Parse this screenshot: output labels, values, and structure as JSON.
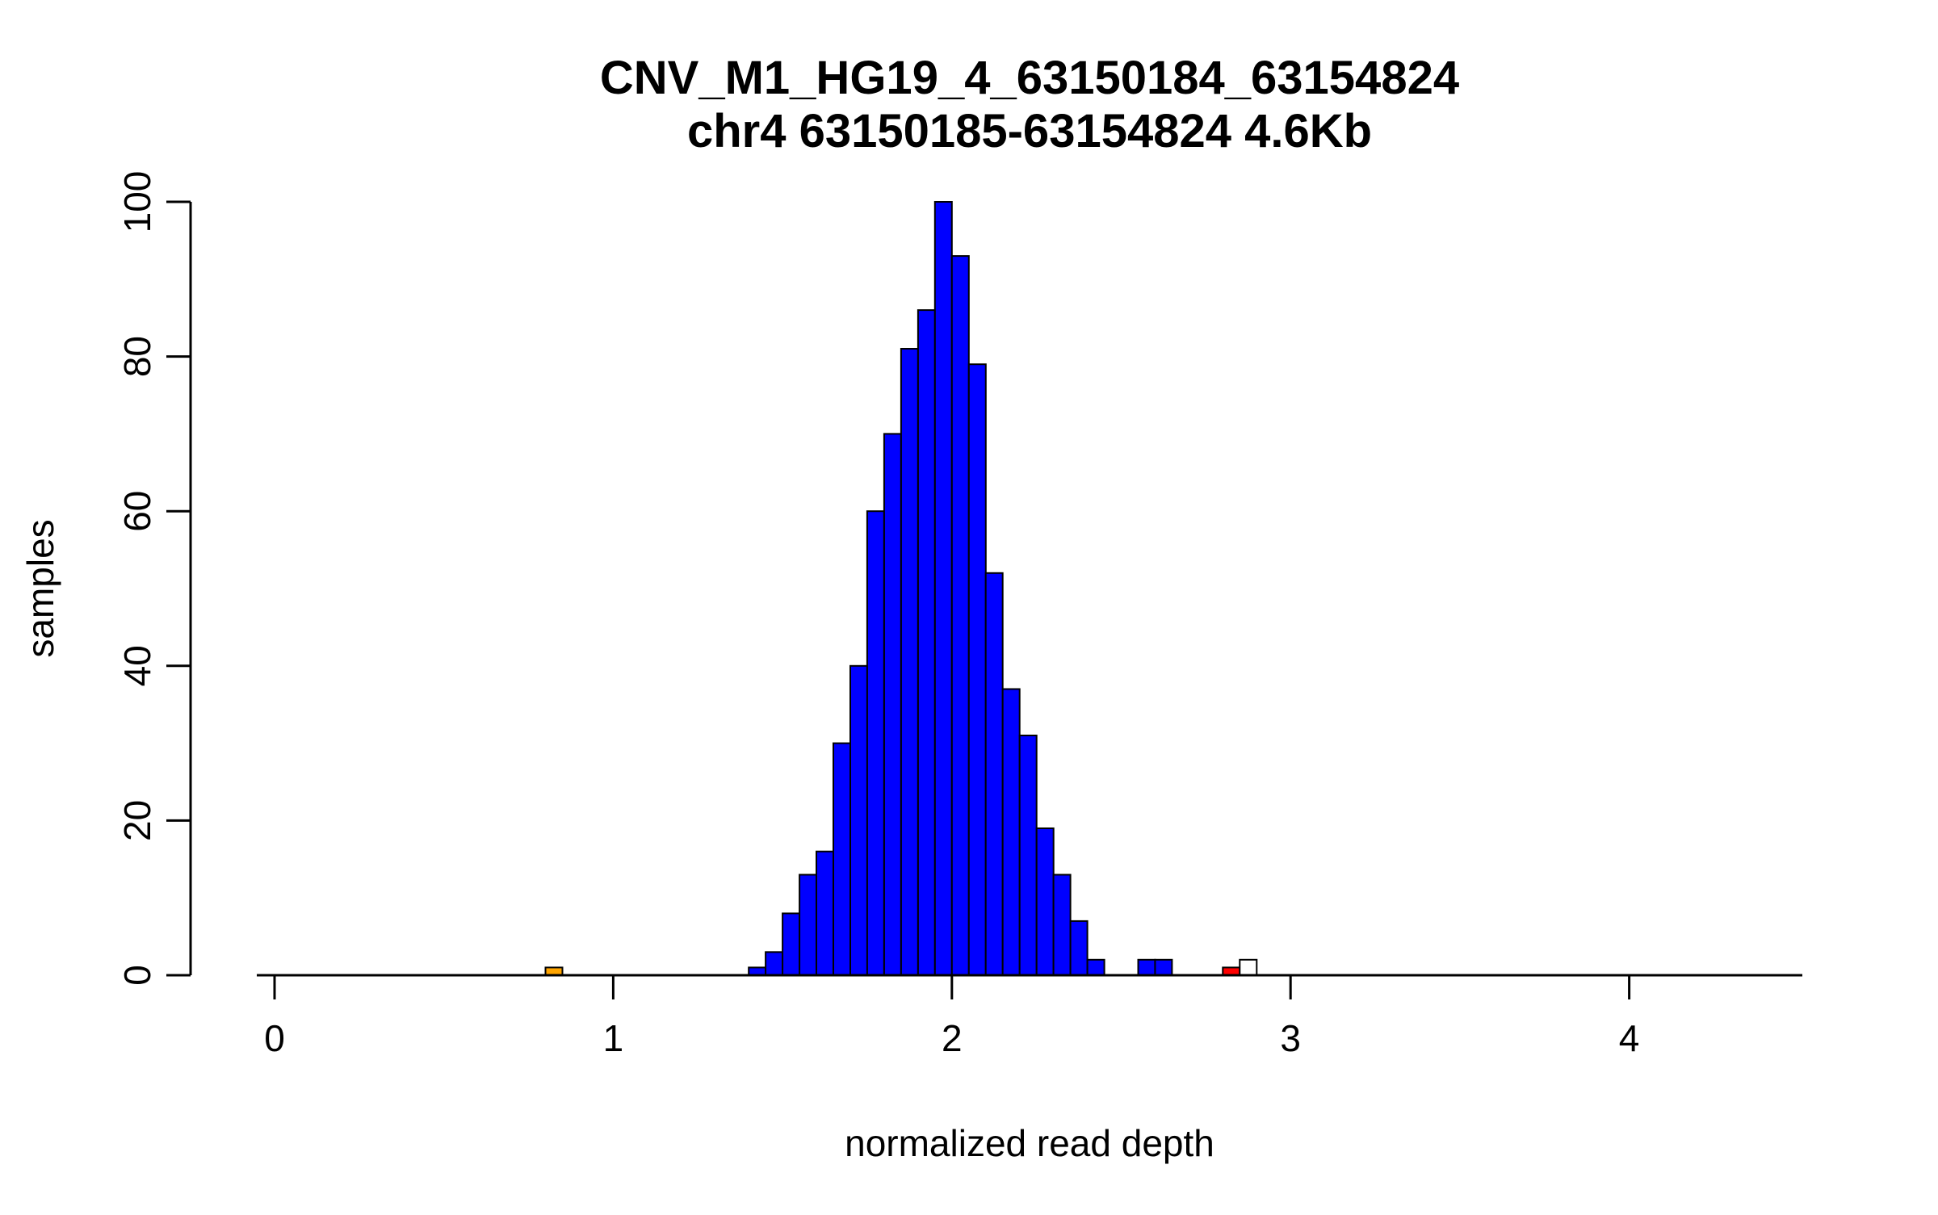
{
  "chart_data": {
    "type": "bar",
    "subtype": "histogram",
    "title": "CNV_M1_HG19_4_63150184_63154824",
    "subtitle": "chr4 63150185-63154824 4.6Kb",
    "xlabel": "normalized read depth",
    "ylabel": "samples",
    "xlim": [
      0,
      4.5
    ],
    "ylim": [
      0,
      100
    ],
    "x_ticks": [
      0,
      1,
      2,
      3,
      4
    ],
    "y_ticks": [
      0,
      20,
      40,
      60,
      80,
      100
    ],
    "bin_width": 0.05,
    "grid": false,
    "legend": false,
    "colors": {
      "default": "#0000FF",
      "outlier_low": "#FFA500",
      "outlier_high": "#FF0000",
      "marker": "#FFFFFF",
      "stroke": "#000000"
    },
    "bars": [
      {
        "x": 0.8,
        "count": 1,
        "color": "#FFA500"
      },
      {
        "x": 1.4,
        "count": 1
      },
      {
        "x": 1.45,
        "count": 3
      },
      {
        "x": 1.5,
        "count": 8
      },
      {
        "x": 1.55,
        "count": 13
      },
      {
        "x": 1.6,
        "count": 16
      },
      {
        "x": 1.65,
        "count": 30
      },
      {
        "x": 1.7,
        "count": 40
      },
      {
        "x": 1.75,
        "count": 60
      },
      {
        "x": 1.8,
        "count": 70
      },
      {
        "x": 1.85,
        "count": 81
      },
      {
        "x": 1.9,
        "count": 86
      },
      {
        "x": 1.95,
        "count": 100
      },
      {
        "x": 2.0,
        "count": 93
      },
      {
        "x": 2.05,
        "count": 79
      },
      {
        "x": 2.1,
        "count": 52
      },
      {
        "x": 2.15,
        "count": 37
      },
      {
        "x": 2.2,
        "count": 31
      },
      {
        "x": 2.25,
        "count": 19
      },
      {
        "x": 2.3,
        "count": 13
      },
      {
        "x": 2.35,
        "count": 7
      },
      {
        "x": 2.4,
        "count": 2
      },
      {
        "x": 2.55,
        "count": 2
      },
      {
        "x": 2.6,
        "count": 2
      },
      {
        "x": 2.8,
        "count": 1,
        "color": "#FF0000"
      },
      {
        "x": 2.85,
        "count": 2,
        "color": "#FFFFFF"
      }
    ]
  }
}
